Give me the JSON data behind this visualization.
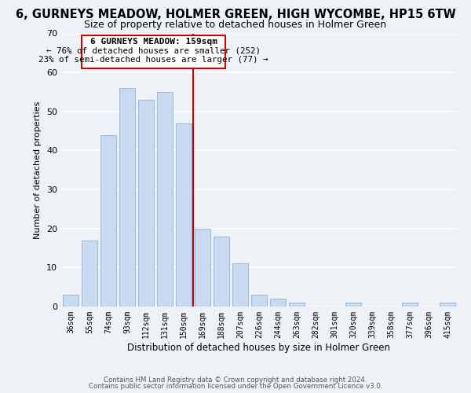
{
  "title": "6, GURNEYS MEADOW, HOLMER GREEN, HIGH WYCOMBE, HP15 6TW",
  "subtitle": "Size of property relative to detached houses in Holmer Green",
  "xlabel": "Distribution of detached houses by size in Holmer Green",
  "ylabel": "Number of detached properties",
  "bar_color": "#c8daf0",
  "bar_edge_color": "#a0bcd8",
  "bins": [
    "36sqm",
    "55sqm",
    "74sqm",
    "93sqm",
    "112sqm",
    "131sqm",
    "150sqm",
    "169sqm",
    "188sqm",
    "207sqm",
    "226sqm",
    "244sqm",
    "263sqm",
    "282sqm",
    "301sqm",
    "320sqm",
    "339sqm",
    "358sqm",
    "377sqm",
    "396sqm",
    "415sqm"
  ],
  "counts": [
    3,
    17,
    44,
    56,
    53,
    55,
    47,
    20,
    18,
    11,
    3,
    2,
    1,
    0,
    0,
    1,
    0,
    0,
    1,
    0,
    1
  ],
  "ylim": [
    0,
    70
  ],
  "yticks": [
    0,
    10,
    20,
    30,
    40,
    50,
    60,
    70
  ],
  "vline_color": "#cc0000",
  "annotation_title": "6 GURNEYS MEADOW: 159sqm",
  "annotation_line1": "← 76% of detached houses are smaller (252)",
  "annotation_line2": "23% of semi-detached houses are larger (77) →",
  "footer1": "Contains HM Land Registry data © Crown copyright and database right 2024.",
  "footer2": "Contains public sector information licensed under the Open Government Licence v3.0.",
  "background_color": "#eef2f7",
  "grid_color": "#ffffff",
  "title_fontsize": 10.5,
  "subtitle_fontsize": 9
}
